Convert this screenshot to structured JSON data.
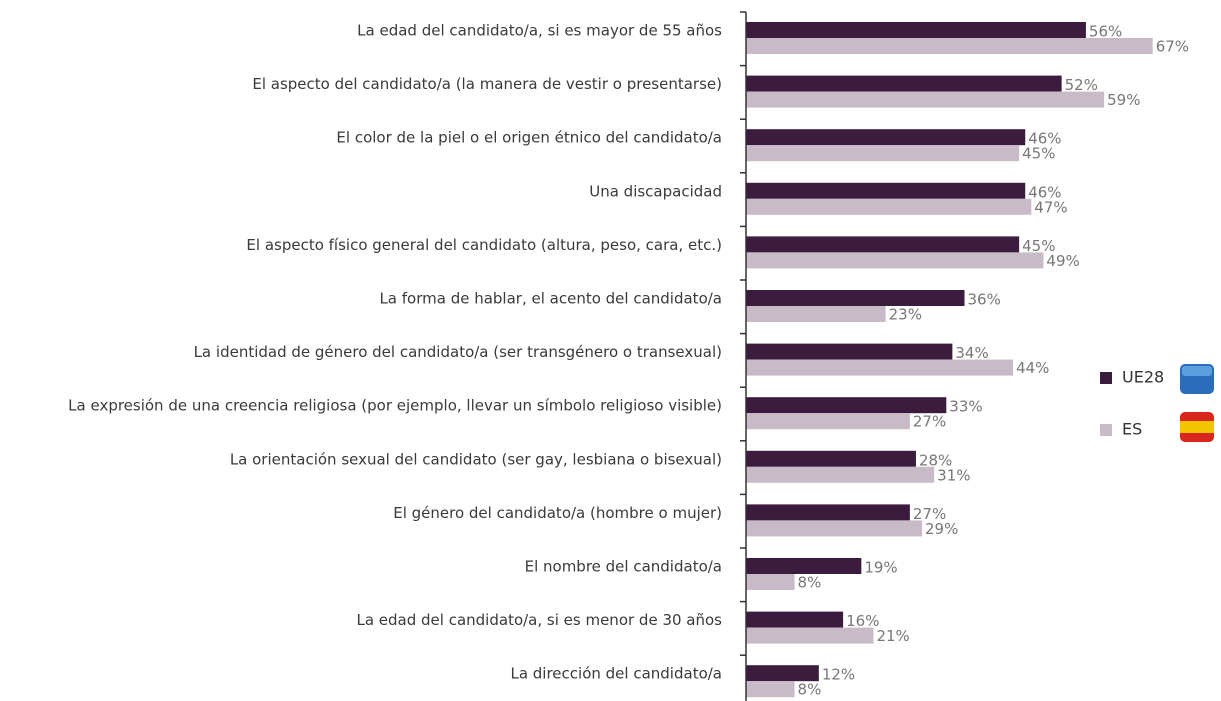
{
  "chart_data": {
    "type": "hbar",
    "categories": [
      "La edad del candidato/a, si es mayor de 55 años",
      "El aspecto del candidato/a (la manera de vestir o presentarse)",
      "El color de la piel o el origen étnico del candidato/a",
      "Una discapacidad",
      "El aspecto físico general del candidato (altura, peso, cara, etc.)",
      "La forma de hablar, el acento del candidato/a",
      "La identidad de género del candidato/a (ser transgénero o transexual)",
      "La expresión de una creencia religiosa (por ejemplo, llevar un símbolo religioso visible)",
      "La orientación sexual del candidato (ser gay, lesbiana o bisexual)",
      "El género del candidato/a (hombre o mujer)",
      "El nombre del candidato/a",
      "La edad del candidato/a, si es menor de 30 años",
      "La dirección del candidato/a"
    ],
    "series": [
      {
        "name": "UE28",
        "color": "#3b1c3f",
        "values": [
          56,
          52,
          46,
          46,
          45,
          36,
          34,
          33,
          28,
          27,
          19,
          16,
          12
        ],
        "value_labels": [
          "56%",
          "52%",
          "46%",
          "46%",
          "45%",
          "36%",
          "34%",
          "33%",
          "28%",
          "27%",
          "19%",
          "16%",
          "12%"
        ]
      },
      {
        "name": "ES",
        "color": "#c9bac8",
        "values": [
          67,
          59,
          45,
          47,
          49,
          23,
          44,
          27,
          31,
          29,
          8,
          21,
          8
        ],
        "value_labels": [
          "67%",
          "59%",
          "45%",
          "47%",
          "49%",
          "23%",
          "44%",
          "27%",
          "31%",
          "29%",
          "8%",
          "21%",
          "8%"
        ]
      }
    ],
    "xlim": [
      0,
      100
    ],
    "legend": "right"
  }
}
